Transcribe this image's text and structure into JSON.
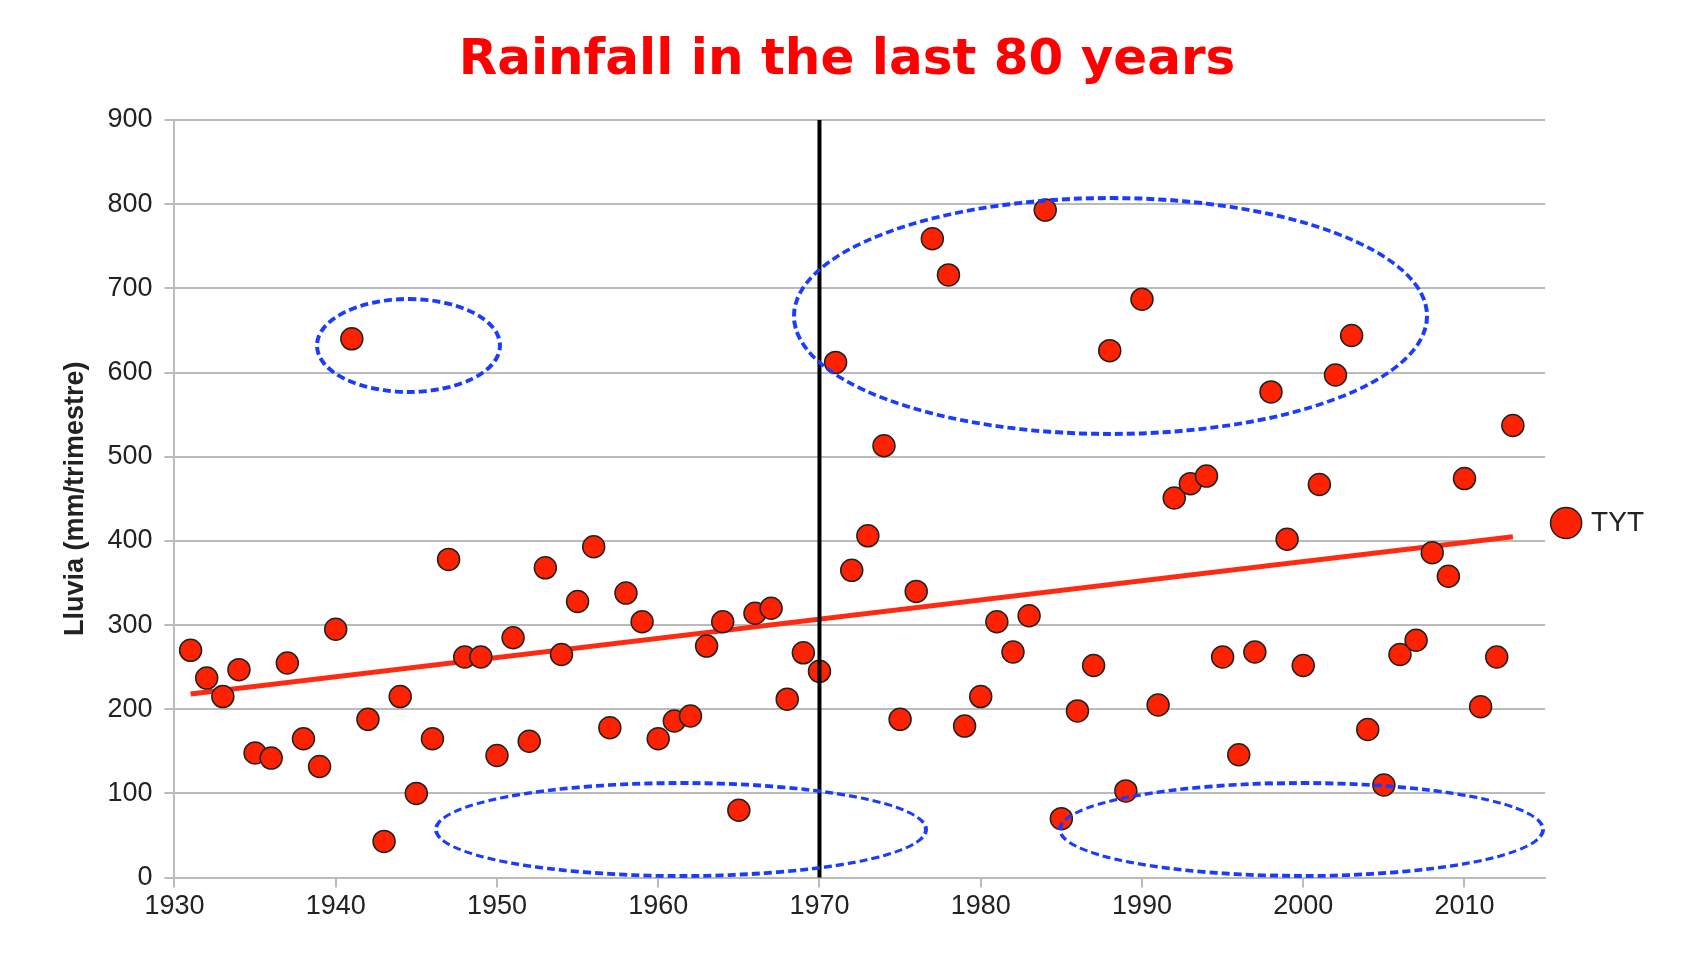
{
  "chart_data": {
    "type": "scatter",
    "title": "Rainfall in the last 80 years",
    "ylabel": "Lluvia (mm/trimestre)",
    "series": [
      {
        "name": "TYT",
        "color": "#ff2200",
        "type": "scatter",
        "marker": "circle",
        "x": [
          1931,
          1932,
          1933,
          1934,
          1935,
          1936,
          1937,
          1938,
          1939,
          1940,
          1941,
          1942,
          1943,
          1944,
          1945,
          1946,
          1947,
          1948,
          1949,
          1950,
          1951,
          1952,
          1953,
          1954,
          1955,
          1956,
          1957,
          1958,
          1959,
          1960,
          1961,
          1962,
          1963,
          1964,
          1965,
          1966,
          1967,
          1968,
          1969,
          1970,
          1971,
          1972,
          1973,
          1974,
          1975,
          1976,
          1977,
          1978,
          1979,
          1980,
          1981,
          1982,
          1983,
          1984,
          1985,
          1986,
          1987,
          1988,
          1989,
          1990,
          1991,
          1992,
          1993,
          1994,
          1995,
          1996,
          1997,
          1998,
          1999,
          2000,
          2001,
          2002,
          2003,
          2004,
          2005,
          2006,
          2007,
          2008,
          2009,
          2010,
          2011,
          2012,
          2013
        ],
        "values": [
          270,
          237,
          215,
          247,
          148,
          142,
          255,
          165,
          132,
          295,
          640,
          188,
          43,
          215,
          100,
          165,
          378,
          262,
          262,
          145,
          285,
          162,
          368,
          265,
          328,
          393,
          178,
          338,
          304,
          165,
          186,
          192,
          275,
          304,
          80,
          314,
          320,
          212,
          267,
          245,
          612,
          365,
          406,
          513,
          188,
          340,
          759,
          716,
          180,
          215,
          304,
          268,
          311,
          793,
          70,
          198,
          252,
          626,
          103,
          687,
          205,
          451,
          468,
          477,
          262,
          146,
          268,
          577,
          402,
          252,
          467,
          597,
          644,
          176,
          110,
          265,
          282,
          386,
          358,
          474,
          203,
          262,
          537
        ]
      },
      {
        "color": "#ff2a12",
        "type": "line",
        "x": [
          1931,
          2013
        ],
        "values": [
          218,
          405
        ]
      }
    ],
    "ref_lines": [
      {
        "axis": "x",
        "value": 1970,
        "color": "#000000"
      }
    ],
    "xlim": [
      1930,
      2015
    ],
    "xticks": [
      1930,
      1940,
      1950,
      1960,
      1970,
      1980,
      1990,
      2000,
      2010
    ],
    "ylim": [
      0,
      900
    ],
    "yticks": [
      0,
      100,
      200,
      300,
      400,
      500,
      600,
      700,
      800,
      900
    ],
    "grid": "y",
    "legend": "right"
  }
}
